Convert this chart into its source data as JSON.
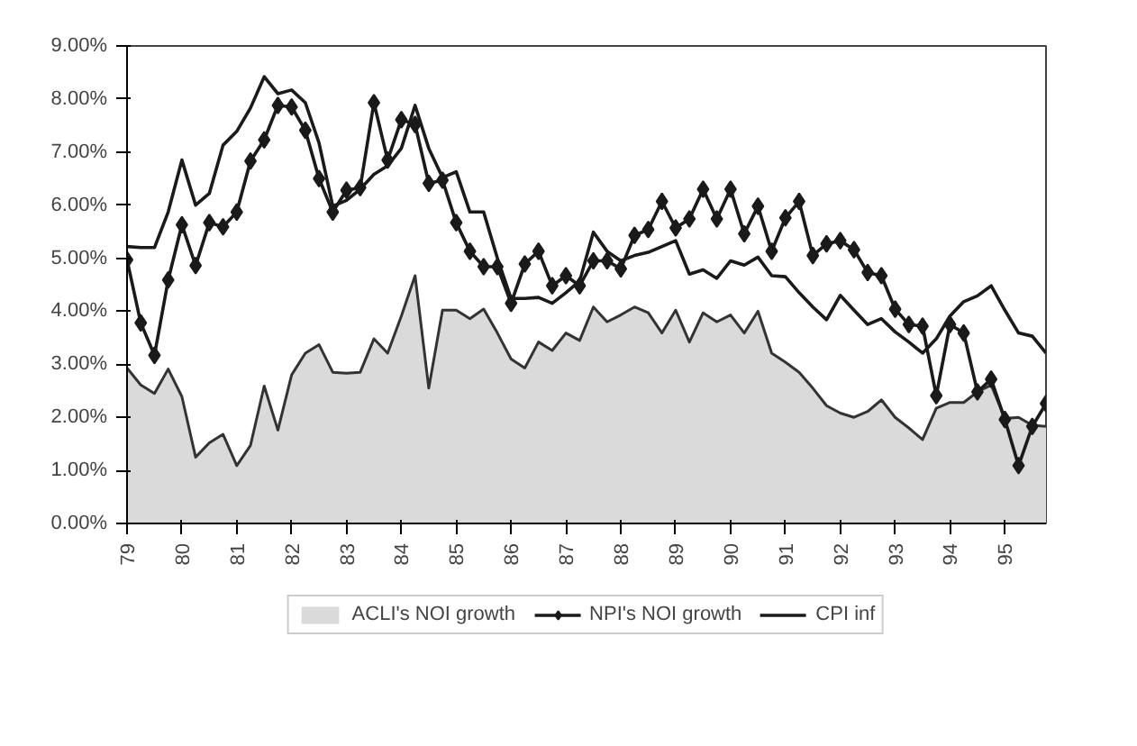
{
  "chart_data": {
    "type": "line",
    "x": [
      79,
      79.25,
      79.5,
      79.75,
      80,
      80.25,
      80.5,
      80.75,
      81,
      81.25,
      81.5,
      81.75,
      82,
      82.25,
      82.5,
      82.75,
      83,
      83.25,
      83.5,
      83.75,
      84,
      84.25,
      84.5,
      84.75,
      85,
      85.25,
      85.5,
      85.75,
      86,
      86.25,
      86.5,
      86.75,
      87,
      87.25,
      87.5,
      87.75,
      88,
      88.25,
      88.5,
      88.75,
      89,
      89.25,
      89.5,
      89.75,
      90,
      90.25,
      90.5,
      90.75,
      91,
      91.25,
      91.5,
      91.75,
      92,
      92.25,
      92.5,
      92.75,
      93,
      93.25,
      93.5,
      93.75,
      94,
      94.25,
      94.5,
      94.75,
      95,
      95.25,
      95.5,
      95.75
    ],
    "series": [
      {
        "name": "ACLI's NOI growth",
        "type": "area",
        "color": "#dadada",
        "marker": "none",
        "values": [
          2.93,
          2.61,
          2.45,
          2.91,
          2.39,
          1.25,
          1.52,
          1.68,
          1.09,
          1.47,
          2.59,
          1.76,
          2.8,
          3.21,
          3.37,
          2.85,
          2.83,
          2.85,
          3.48,
          3.21,
          3.91,
          4.67,
          2.55,
          4.02,
          4.02,
          3.86,
          4.04,
          3.59,
          3.1,
          2.93,
          3.42,
          3.26,
          3.59,
          3.45,
          4.08,
          3.8,
          3.93,
          4.08,
          3.97,
          3.59,
          4.02,
          3.42,
          3.97,
          3.8,
          3.93,
          3.59,
          4.0,
          3.21,
          3.04,
          2.85,
          2.55,
          2.22,
          2.08,
          2.0,
          2.11,
          2.33,
          2.0,
          1.8,
          1.58,
          2.17,
          2.28,
          2.28,
          2.48,
          2.61,
          1.98,
          2.0,
          1.85,
          1.83
        ]
      },
      {
        "name": "NPI's NOI growth",
        "color": "#1a1a1a",
        "marker": "diamond",
        "values": [
          4.97,
          3.78,
          3.17,
          4.59,
          5.63,
          4.86,
          5.67,
          5.59,
          5.87,
          6.83,
          7.23,
          7.88,
          7.85,
          7.41,
          6.5,
          5.87,
          6.28,
          6.33,
          7.93,
          6.85,
          7.61,
          7.52,
          6.41,
          6.47,
          5.67,
          5.13,
          4.84,
          4.84,
          4.15,
          4.89,
          5.13,
          4.48,
          4.67,
          4.48,
          4.95,
          4.95,
          4.8,
          5.43,
          5.54,
          6.07,
          5.57,
          5.74,
          6.3,
          5.74,
          6.3,
          5.46,
          5.98,
          5.13,
          5.76,
          6.07,
          5.05,
          5.27,
          5.33,
          5.16,
          4.73,
          4.67,
          4.04,
          3.75,
          3.72,
          2.41,
          3.75,
          3.59,
          2.48,
          2.72,
          1.96,
          1.09,
          1.83,
          2.26
        ]
      },
      {
        "name": "CPI inf",
        "color": "#1a1a1a",
        "marker": "none",
        "values": [
          5.22,
          5.2,
          5.2,
          5.87,
          6.85,
          6.0,
          6.22,
          7.13,
          7.39,
          7.83,
          8.42,
          8.1,
          8.17,
          7.93,
          7.17,
          5.98,
          6.09,
          6.3,
          6.58,
          6.74,
          7.07,
          7.88,
          7.07,
          6.52,
          6.63,
          5.87,
          5.87,
          5.0,
          4.24,
          4.24,
          4.26,
          4.15,
          4.35,
          4.57,
          5.49,
          5.13,
          4.95,
          5.05,
          5.11,
          5.22,
          5.33,
          4.7,
          4.78,
          4.62,
          4.95,
          4.87,
          5.02,
          4.67,
          4.65,
          4.35,
          4.08,
          3.84,
          4.3,
          4.02,
          3.75,
          3.86,
          3.61,
          3.42,
          3.21,
          3.48,
          3.91,
          4.18,
          4.29,
          4.48,
          4.02,
          3.59,
          3.53,
          3.21
        ]
      }
    ],
    "xlim": [
      79,
      95.75
    ],
    "xticks": [
      79,
      80,
      81,
      82,
      83,
      84,
      85,
      86,
      87,
      88,
      89,
      90,
      91,
      92,
      93,
      94,
      95
    ],
    "ylim": [
      0,
      9
    ],
    "yticks": [
      {
        "value": 0,
        "label": "0.00%"
      },
      {
        "value": 1,
        "label": "1.00%"
      },
      {
        "value": 2,
        "label": "2.00%"
      },
      {
        "value": 3,
        "label": "3.00%"
      },
      {
        "value": 4,
        "label": "4.00%"
      },
      {
        "value": 5,
        "label": "5.00%"
      },
      {
        "value": 6,
        "label": "6.00%"
      },
      {
        "value": 7,
        "label": "7.00%"
      },
      {
        "value": 8,
        "label": "8.00%"
      },
      {
        "value": 9,
        "label": "9.00%"
      }
    ],
    "grid": false,
    "legend": "bottom"
  }
}
